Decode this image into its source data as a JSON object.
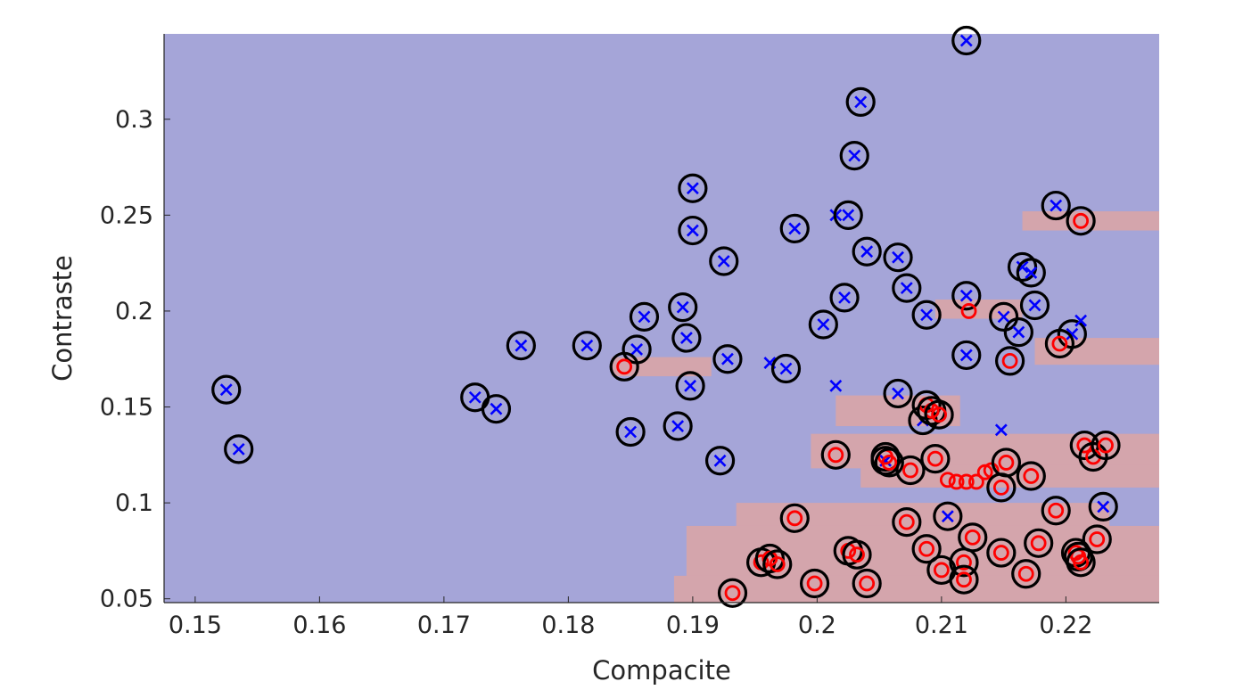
{
  "chart_data": {
    "type": "scatter",
    "title": "",
    "xlabel": "Compacite",
    "ylabel": "Contraste",
    "xlim": [
      0.1475,
      0.2275
    ],
    "ylim": [
      0.048,
      0.3445
    ],
    "xticks": [
      0.15,
      0.16,
      0.17,
      0.18,
      0.19,
      0.2,
      0.21,
      0.22
    ],
    "xtick_labels": [
      "0.15",
      "0.16",
      "0.17",
      "0.18",
      "0.19",
      "0.2",
      "0.21",
      "0.22"
    ],
    "yticks": [
      0.05,
      0.1,
      0.15,
      0.2,
      0.25,
      0.3
    ],
    "ytick_labels": [
      "0.05",
      "0.1",
      "0.15",
      "0.2",
      "0.25",
      "0.3"
    ],
    "grid": false,
    "legend": "none",
    "colors": {
      "background_region": "#a5a5d8",
      "decision_region": "#d4a5ac",
      "class_x": "#0000ff",
      "class_o": "#ff0000",
      "support_circle": "#000000",
      "axis": "#262626"
    },
    "decision_regions": [
      {
        "x": [
          0.2165,
          0.2275
        ],
        "y": [
          0.242,
          0.252
        ]
      },
      {
        "x": [
          0.1835,
          0.1915
        ],
        "y": [
          0.166,
          0.176
        ]
      },
      {
        "x": [
          0.2095,
          0.2165
        ],
        "y": [
          0.196,
          0.206
        ]
      },
      {
        "x": [
          0.2175,
          0.2275
        ],
        "y": [
          0.172,
          0.186
        ]
      },
      {
        "x": [
          0.2015,
          0.2115
        ],
        "y": [
          0.14,
          0.156
        ]
      },
      {
        "x": [
          0.1995,
          0.2275
        ],
        "y": [
          0.118,
          0.136
        ]
      },
      {
        "x": [
          0.2035,
          0.2275
        ],
        "y": [
          0.108,
          0.12
        ]
      },
      {
        "x": [
          0.1935,
          0.2235
        ],
        "y": [
          0.086,
          0.1
        ]
      },
      {
        "x": [
          0.1895,
          0.2275
        ],
        "y": [
          0.06,
          0.088
        ]
      },
      {
        "x": [
          0.1885,
          0.2275
        ],
        "y": [
          0.048,
          0.062
        ]
      }
    ],
    "series": [
      {
        "marker": "x",
        "points": [
          {
            "x": 0.1525,
            "y": 0.159,
            "sv": true
          },
          {
            "x": 0.1535,
            "y": 0.128,
            "sv": true
          },
          {
            "x": 0.1725,
            "y": 0.155,
            "sv": true
          },
          {
            "x": 0.1742,
            "y": 0.149,
            "sv": true
          },
          {
            "x": 0.1762,
            "y": 0.182,
            "sv": true
          },
          {
            "x": 0.1815,
            "y": 0.182,
            "sv": true
          },
          {
            "x": 0.185,
            "y": 0.137,
            "sv": true
          },
          {
            "x": 0.1855,
            "y": 0.18,
            "sv": true
          },
          {
            "x": 0.1861,
            "y": 0.197,
            "sv": true
          },
          {
            "x": 0.1888,
            "y": 0.14,
            "sv": true
          },
          {
            "x": 0.1892,
            "y": 0.202,
            "sv": true
          },
          {
            "x": 0.1895,
            "y": 0.186,
            "sv": true
          },
          {
            "x": 0.1898,
            "y": 0.161,
            "sv": true
          },
          {
            "x": 0.19,
            "y": 0.264,
            "sv": true
          },
          {
            "x": 0.19,
            "y": 0.242,
            "sv": true
          },
          {
            "x": 0.1922,
            "y": 0.122,
            "sv": true
          },
          {
            "x": 0.1925,
            "y": 0.226,
            "sv": true
          },
          {
            "x": 0.1928,
            "y": 0.175,
            "sv": true
          },
          {
            "x": 0.1962,
            "y": 0.173,
            "sv": false
          },
          {
            "x": 0.1975,
            "y": 0.17,
            "sv": true
          },
          {
            "x": 0.1982,
            "y": 0.243,
            "sv": true
          },
          {
            "x": 0.2005,
            "y": 0.193,
            "sv": true
          },
          {
            "x": 0.2015,
            "y": 0.25,
            "sv": false
          },
          {
            "x": 0.2015,
            "y": 0.161,
            "sv": false
          },
          {
            "x": 0.2022,
            "y": 0.207,
            "sv": true
          },
          {
            "x": 0.2025,
            "y": 0.25,
            "sv": true
          },
          {
            "x": 0.203,
            "y": 0.281,
            "sv": true
          },
          {
            "x": 0.2035,
            "y": 0.309,
            "sv": true
          },
          {
            "x": 0.204,
            "y": 0.231,
            "sv": true
          },
          {
            "x": 0.2055,
            "y": 0.122,
            "sv": true
          },
          {
            "x": 0.2065,
            "y": 0.228,
            "sv": true
          },
          {
            "x": 0.2065,
            "y": 0.157,
            "sv": true
          },
          {
            "x": 0.2072,
            "y": 0.212,
            "sv": true
          },
          {
            "x": 0.2085,
            "y": 0.143,
            "sv": true
          },
          {
            "x": 0.2088,
            "y": 0.198,
            "sv": true
          },
          {
            "x": 0.2105,
            "y": 0.093,
            "sv": true
          },
          {
            "x": 0.212,
            "y": 0.341,
            "sv": true
          },
          {
            "x": 0.212,
            "y": 0.208,
            "sv": true
          },
          {
            "x": 0.212,
            "y": 0.177,
            "sv": true
          },
          {
            "x": 0.2148,
            "y": 0.138,
            "sv": false
          },
          {
            "x": 0.215,
            "y": 0.197,
            "sv": true
          },
          {
            "x": 0.2162,
            "y": 0.189,
            "sv": true
          },
          {
            "x": 0.2165,
            "y": 0.223,
            "sv": true
          },
          {
            "x": 0.2172,
            "y": 0.22,
            "sv": true
          },
          {
            "x": 0.2175,
            "y": 0.203,
            "sv": true
          },
          {
            "x": 0.2192,
            "y": 0.255,
            "sv": true
          },
          {
            "x": 0.2205,
            "y": 0.188,
            "sv": true
          },
          {
            "x": 0.2212,
            "y": 0.195,
            "sv": false
          },
          {
            "x": 0.223,
            "y": 0.098,
            "sv": true
          }
        ]
      },
      {
        "marker": "o",
        "points": [
          {
            "x": 0.1845,
            "y": 0.171,
            "sv": true
          },
          {
            "x": 0.1932,
            "y": 0.053,
            "sv": true
          },
          {
            "x": 0.1955,
            "y": 0.069,
            "sv": true
          },
          {
            "x": 0.1962,
            "y": 0.071,
            "sv": true
          },
          {
            "x": 0.1968,
            "y": 0.068,
            "sv": true
          },
          {
            "x": 0.1982,
            "y": 0.092,
            "sv": true
          },
          {
            "x": 0.1998,
            "y": 0.058,
            "sv": true
          },
          {
            "x": 0.2015,
            "y": 0.125,
            "sv": true
          },
          {
            "x": 0.2025,
            "y": 0.075,
            "sv": true
          },
          {
            "x": 0.2032,
            "y": 0.073,
            "sv": true
          },
          {
            "x": 0.204,
            "y": 0.058,
            "sv": true
          },
          {
            "x": 0.2055,
            "y": 0.124,
            "sv": true
          },
          {
            "x": 0.2058,
            "y": 0.121,
            "sv": true
          },
          {
            "x": 0.2075,
            "y": 0.117,
            "sv": true
          },
          {
            "x": 0.2072,
            "y": 0.09,
            "sv": true
          },
          {
            "x": 0.2088,
            "y": 0.076,
            "sv": true
          },
          {
            "x": 0.2088,
            "y": 0.151,
            "sv": true
          },
          {
            "x": 0.2092,
            "y": 0.148,
            "sv": true
          },
          {
            "x": 0.2098,
            "y": 0.146,
            "sv": true
          },
          {
            "x": 0.2095,
            "y": 0.123,
            "sv": true
          },
          {
            "x": 0.21,
            "y": 0.065,
            "sv": true
          },
          {
            "x": 0.2105,
            "y": 0.112,
            "sv": false
          },
          {
            "x": 0.2112,
            "y": 0.111,
            "sv": false
          },
          {
            "x": 0.2118,
            "y": 0.069,
            "sv": true
          },
          {
            "x": 0.2118,
            "y": 0.06,
            "sv": true
          },
          {
            "x": 0.212,
            "y": 0.111,
            "sv": false
          },
          {
            "x": 0.2122,
            "y": 0.2,
            "sv": false
          },
          {
            "x": 0.2128,
            "y": 0.111,
            "sv": false
          },
          {
            "x": 0.2125,
            "y": 0.082,
            "sv": true
          },
          {
            "x": 0.2135,
            "y": 0.116,
            "sv": false
          },
          {
            "x": 0.214,
            "y": 0.117,
            "sv": false
          },
          {
            "x": 0.2148,
            "y": 0.108,
            "sv": true
          },
          {
            "x": 0.2148,
            "y": 0.074,
            "sv": true
          },
          {
            "x": 0.2152,
            "y": 0.121,
            "sv": true
          },
          {
            "x": 0.2155,
            "y": 0.174,
            "sv": true
          },
          {
            "x": 0.2168,
            "y": 0.063,
            "sv": true
          },
          {
            "x": 0.2172,
            "y": 0.114,
            "sv": true
          },
          {
            "x": 0.2178,
            "y": 0.079,
            "sv": true
          },
          {
            "x": 0.2192,
            "y": 0.096,
            "sv": true
          },
          {
            "x": 0.2195,
            "y": 0.183,
            "sv": true
          },
          {
            "x": 0.2208,
            "y": 0.074,
            "sv": true
          },
          {
            "x": 0.221,
            "y": 0.072,
            "sv": true
          },
          {
            "x": 0.2212,
            "y": 0.069,
            "sv": true
          },
          {
            "x": 0.2212,
            "y": 0.247,
            "sv": true
          },
          {
            "x": 0.2215,
            "y": 0.13,
            "sv": true
          },
          {
            "x": 0.2222,
            "y": 0.124,
            "sv": true
          },
          {
            "x": 0.2225,
            "y": 0.081,
            "sv": true
          },
          {
            "x": 0.2232,
            "y": 0.13,
            "sv": true
          }
        ]
      }
    ]
  }
}
